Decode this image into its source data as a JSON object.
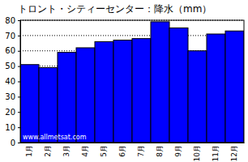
{
  "chart_data": {
    "type": "bar",
    "title": "トロント・シティーセンター：降水（mm）",
    "categories": [
      "1月",
      "2月",
      "3月",
      "4月",
      "5月",
      "6月",
      "7月",
      "8月",
      "9月",
      "10月",
      "11月",
      "12月"
    ],
    "values": [
      51,
      49,
      59,
      62,
      66,
      67,
      68,
      79,
      75,
      60,
      71,
      73
    ],
    "color": "#0000ff",
    "ylim": [
      0,
      80
    ],
    "yticks": [
      0,
      10,
      20,
      30,
      40,
      50,
      60,
      70,
      80
    ],
    "grid": true,
    "annotations": [
      "www.allmetsat.com"
    ]
  }
}
